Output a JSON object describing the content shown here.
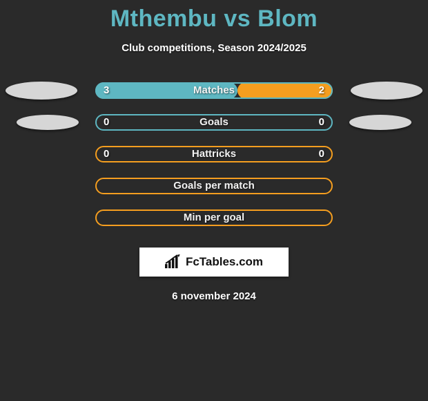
{
  "title": "Mthembu vs Blom",
  "subtitle": "Club competitions, Season 2024/2025",
  "date": "6 november 2024",
  "footer_brand": "FcTables.com",
  "background_color": "#2a2a2a",
  "title_color": "#5eb7c2",
  "rows": [
    {
      "label": "Matches",
      "left_value": "3",
      "right_value": "2",
      "left_pct": 60,
      "right_pct": 40,
      "left_color": "#5eb7c2",
      "right_color": "#f59e1f",
      "outline_color": "#5eb7c2",
      "show_values": true,
      "show_ellipses": true,
      "ellipse_size": "large"
    },
    {
      "label": "Goals",
      "left_value": "0",
      "right_value": "0",
      "left_pct": 0,
      "right_pct": 0,
      "left_color": "#5eb7c2",
      "right_color": "#f59e1f",
      "outline_color": "#5eb7c2",
      "show_values": true,
      "show_ellipses": true,
      "ellipse_size": "small"
    },
    {
      "label": "Hattricks",
      "left_value": "0",
      "right_value": "0",
      "left_pct": 0,
      "right_pct": 0,
      "left_color": "#5eb7c2",
      "right_color": "#f59e1f",
      "outline_color": "#f59e1f",
      "show_values": true,
      "show_ellipses": false
    },
    {
      "label": "Goals per match",
      "left_value": "",
      "right_value": "",
      "left_pct": 0,
      "right_pct": 0,
      "left_color": "#5eb7c2",
      "right_color": "#f59e1f",
      "outline_color": "#f59e1f",
      "show_values": false,
      "show_ellipses": false
    },
    {
      "label": "Min per goal",
      "left_value": "",
      "right_value": "",
      "left_pct": 0,
      "right_pct": 0,
      "left_color": "#5eb7c2",
      "right_color": "#f59e1f",
      "outline_color": "#f59e1f",
      "show_values": false,
      "show_ellipses": false
    }
  ]
}
